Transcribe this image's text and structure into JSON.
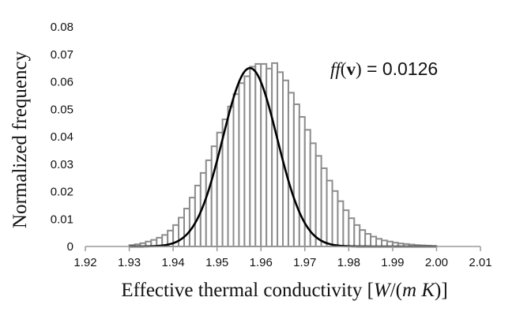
{
  "chart_data": {
    "type": "bar",
    "xlabel": {
      "text": "Effective thermal conductivity [",
      "unit_W": "W",
      "unit_sep": "/(",
      "unit_mK": "m K",
      "unit_end": ")]"
    },
    "ylabel": "Normalized frequency",
    "annotation": {
      "func": "ff",
      "arg_open": "(",
      "arg": "v",
      "arg_close": ")",
      "rest": " = 0.0126"
    },
    "xlim": [
      1.92,
      2.01
    ],
    "ylim": [
      0,
      0.08
    ],
    "x_ticks": [
      "1.92",
      "1.93",
      "1.94",
      "1.95",
      "1.96",
      "1.97",
      "1.98",
      "1.99",
      "2.00",
      "2.01"
    ],
    "y_ticks": [
      "0",
      "0.01",
      "0.02",
      "0.03",
      "0.04",
      "0.05",
      "0.06",
      "0.07",
      "0.08"
    ],
    "bar_width": 0.00125,
    "bin_start": 1.93,
    "histogram_values": [
      0.0005,
      0.0008,
      0.0012,
      0.0018,
      0.0024,
      0.0032,
      0.0042,
      0.0058,
      0.0078,
      0.0105,
      0.0138,
      0.0178,
      0.0222,
      0.0268,
      0.0314,
      0.0365,
      0.0415,
      0.0463,
      0.051,
      0.0555,
      0.0595,
      0.062,
      0.0655,
      0.0665,
      0.0665,
      0.0648,
      0.0668,
      0.0635,
      0.0605,
      0.056,
      0.0518,
      0.0472,
      0.0425,
      0.0376,
      0.033,
      0.0285,
      0.024,
      0.0202,
      0.0165,
      0.0132,
      0.0103,
      0.0078,
      0.006,
      0.0046,
      0.0036,
      0.0028,
      0.0022,
      0.0018,
      0.0014,
      0.0011,
      0.0009,
      0.0007,
      0.0005,
      0.0004,
      0.0003,
      0.0002
    ],
    "fit_curve": {
      "type": "normal",
      "mean": 1.9575,
      "std": 0.0062,
      "peak": 0.065,
      "x_range": [
        1.93,
        2.0
      ]
    },
    "colors": {
      "bar_fill": "#ffffff",
      "bar_stroke": "#8c8c8c",
      "curve": "#000000",
      "axis": "#9a9a9a"
    },
    "grid": false
  }
}
